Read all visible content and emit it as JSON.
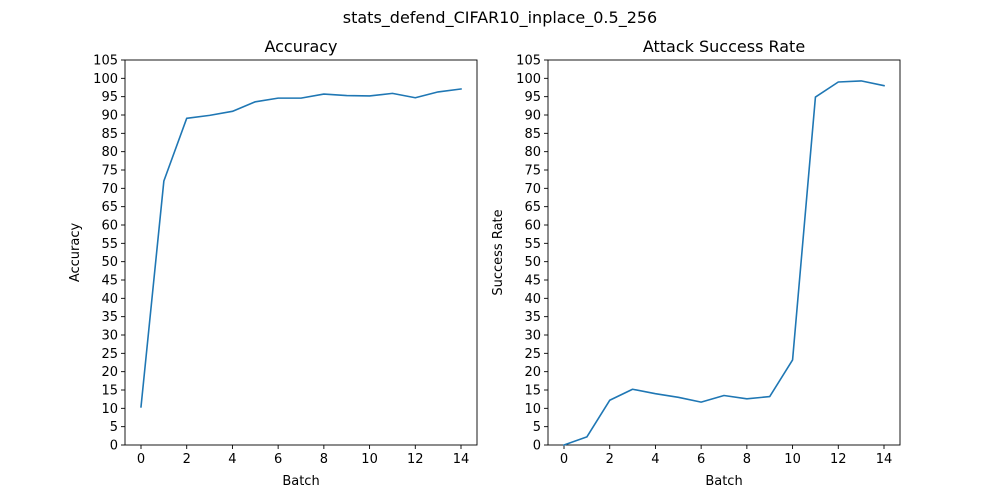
{
  "figure": {
    "suptitle": "stats_defend_CIFAR10_inplace_0.5_256"
  },
  "chart_data": [
    {
      "type": "line",
      "title": "Accuracy",
      "xlabel": "Batch",
      "ylabel": "Accuracy",
      "xlim": [
        -0.7,
        14.7
      ],
      "ylim": [
        0,
        105
      ],
      "xticks": [
        0,
        2,
        4,
        6,
        8,
        10,
        12,
        14
      ],
      "yticks": [
        0,
        5,
        10,
        15,
        20,
        25,
        30,
        35,
        40,
        45,
        50,
        55,
        60,
        65,
        70,
        75,
        80,
        85,
        90,
        95,
        100,
        105
      ],
      "grid": false,
      "color": "#1f77b4",
      "series": [
        {
          "x": [
            0,
            1,
            2,
            3,
            4,
            5,
            6,
            7,
            8,
            9,
            10,
            11,
            12,
            13,
            14
          ],
          "values": [
            10.4,
            72.0,
            89.1,
            89.9,
            91.0,
            93.6,
            94.6,
            94.6,
            95.7,
            95.3,
            95.2,
            95.9,
            94.7,
            96.3,
            97.1
          ]
        }
      ]
    },
    {
      "type": "line",
      "title": "Attack Success Rate",
      "xlabel": "Batch",
      "ylabel": "Success Rate",
      "xlim": [
        -0.7,
        14.7
      ],
      "ylim": [
        0,
        105
      ],
      "xticks": [
        0,
        2,
        4,
        6,
        8,
        10,
        12,
        14
      ],
      "yticks": [
        0,
        5,
        10,
        15,
        20,
        25,
        30,
        35,
        40,
        45,
        50,
        55,
        60,
        65,
        70,
        75,
        80,
        85,
        90,
        95,
        100,
        105
      ],
      "grid": false,
      "color": "#1f77b4",
      "series": [
        {
          "x": [
            0,
            1,
            2,
            3,
            4,
            5,
            6,
            7,
            8,
            9,
            10,
            11,
            12,
            13,
            14
          ],
          "values": [
            0.0,
            2.2,
            12.2,
            15.2,
            14.0,
            13.0,
            11.7,
            13.5,
            12.6,
            13.2,
            23.2,
            94.9,
            99.0,
            99.3,
            98.0
          ]
        }
      ]
    }
  ]
}
